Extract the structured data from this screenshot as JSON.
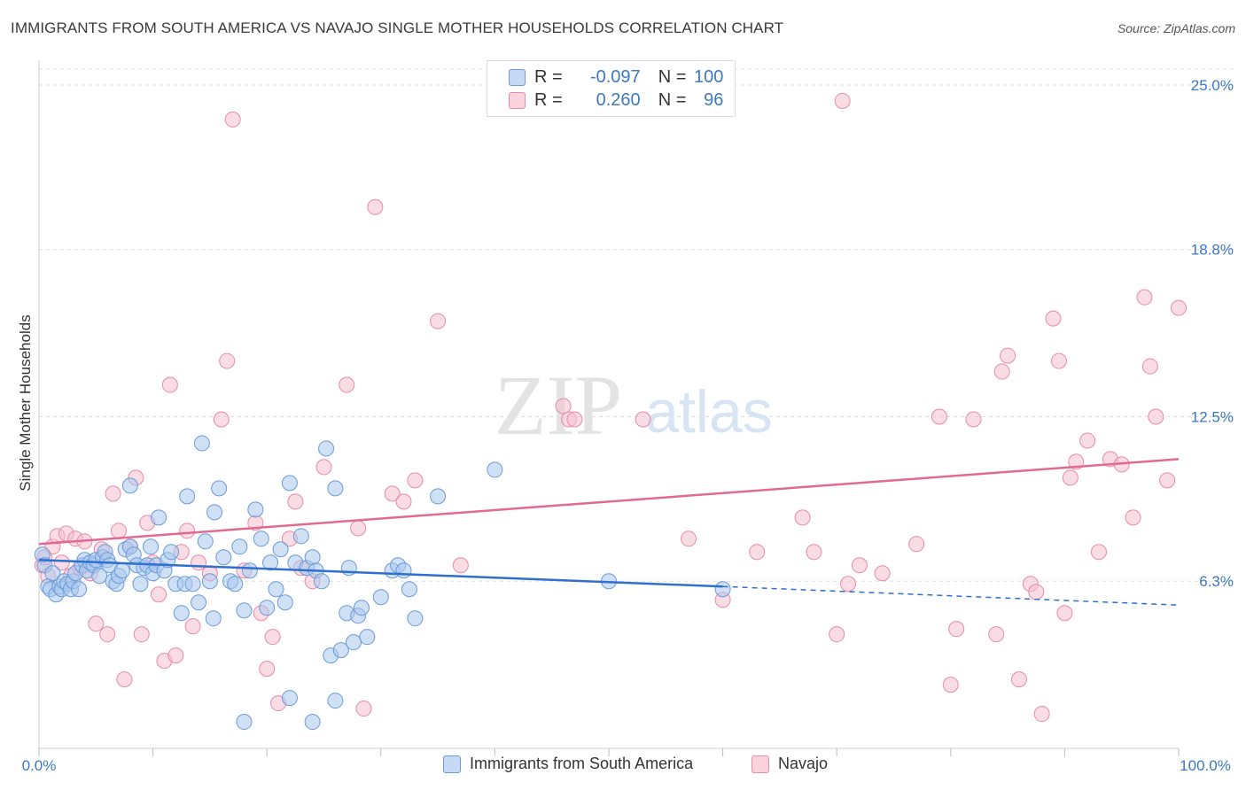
{
  "header": {
    "title": "IMMIGRANTS FROM SOUTH AMERICA VS NAVAJO SINGLE MOTHER HOUSEHOLDS CORRELATION CHART",
    "source": "Source: ZipAtlas.com"
  },
  "watermark": {
    "zip": "ZIP",
    "atlas": "atlas"
  },
  "legend": {
    "rows": [
      {
        "r_label": "R =",
        "r_value": "-0.097",
        "n_label": "N =",
        "n_value": "100",
        "color": "#a9c8ef"
      },
      {
        "r_label": "R =",
        "r_value": "0.260",
        "n_label": "N =",
        "n_value": "96",
        "color": "#f5b8cb"
      }
    ]
  },
  "colors": {
    "blue_fill": "#a9c8ef",
    "blue_stroke": "#6a9bd8",
    "blue_line": "#2e6fd0",
    "pink_fill": "#f5c0d0",
    "pink_stroke": "#e88aaa",
    "pink_line": "#e06a92",
    "axis_text": "#3b78c4",
    "grid": "#dddddd"
  },
  "chart_data": {
    "type": "scatter",
    "ylabel": "Single Mother Households",
    "xlabel": "",
    "x_tick_labels": [
      "0.0%",
      "100.0%"
    ],
    "y_ticks": [
      6.3,
      12.5,
      18.8,
      25.0
    ],
    "y_tick_labels": [
      "6.3%",
      "12.5%",
      "18.8%",
      "25.0%"
    ],
    "xlim": [
      0,
      100
    ],
    "ylim": [
      0,
      25.6
    ],
    "grid": true,
    "legend_position": "top-center",
    "series": [
      {
        "name": "Immigrants from South America",
        "r": -0.097,
        "n": 100,
        "trend": {
          "x0": 0,
          "y0": 7.1,
          "x1": 60,
          "y1": 6.1,
          "dash_to_x": 100,
          "dash_to_y": 5.4
        },
        "points": [
          [
            0.3,
            7.3
          ],
          [
            0.5,
            6.9
          ],
          [
            0.8,
            6.1
          ],
          [
            1,
            6.0
          ],
          [
            1.2,
            6.6
          ],
          [
            1.5,
            5.8
          ],
          [
            1.8,
            6.1
          ],
          [
            2,
            6.0
          ],
          [
            2.2,
            6.3
          ],
          [
            2.5,
            6.2
          ],
          [
            2.8,
            6.0
          ],
          [
            3,
            6.3
          ],
          [
            3.2,
            6.6
          ],
          [
            3.5,
            6.0
          ],
          [
            3.8,
            6.9
          ],
          [
            4,
            7.1
          ],
          [
            4.2,
            6.7
          ],
          [
            4.5,
            7.0
          ],
          [
            4.8,
            6.9
          ],
          [
            5,
            7.1
          ],
          [
            5.3,
            6.5
          ],
          [
            5.6,
            7.2
          ],
          [
            5.8,
            7.4
          ],
          [
            6,
            7.1
          ],
          [
            6.2,
            6.9
          ],
          [
            6.5,
            6.3
          ],
          [
            6.8,
            6.2
          ],
          [
            7,
            6.5
          ],
          [
            7.3,
            6.7
          ],
          [
            7.6,
            7.5
          ],
          [
            8,
            7.6
          ],
          [
            8.3,
            7.3
          ],
          [
            8.6,
            6.9
          ],
          [
            8.9,
            6.2
          ],
          [
            9.2,
            6.8
          ],
          [
            9.5,
            6.9
          ],
          [
            9.8,
            7.6
          ],
          [
            10,
            6.6
          ],
          [
            10.3,
            6.9
          ],
          [
            10.5,
            8.7
          ],
          [
            11,
            6.7
          ],
          [
            11.3,
            7.1
          ],
          [
            11.6,
            7.4
          ],
          [
            12,
            6.2
          ],
          [
            12.5,
            5.1
          ],
          [
            12.8,
            6.2
          ],
          [
            13,
            9.5
          ],
          [
            13.5,
            6.2
          ],
          [
            14,
            5.5
          ],
          [
            14.3,
            11.5
          ],
          [
            14.6,
            7.8
          ],
          [
            15,
            6.3
          ],
          [
            15.4,
            8.9
          ],
          [
            15.8,
            9.8
          ],
          [
            16.2,
            7.2
          ],
          [
            16.8,
            6.3
          ],
          [
            17.2,
            6.2
          ],
          [
            17.6,
            7.6
          ],
          [
            18,
            5.2
          ],
          [
            18.5,
            6.7
          ],
          [
            19,
            9.0
          ],
          [
            19.5,
            7.9
          ],
          [
            20,
            5.3
          ],
          [
            20.3,
            7.0
          ],
          [
            20.8,
            6.0
          ],
          [
            21.2,
            7.5
          ],
          [
            21.6,
            5.5
          ],
          [
            22,
            10.0
          ],
          [
            22.5,
            7.0
          ],
          [
            23,
            8.0
          ],
          [
            23.5,
            6.8
          ],
          [
            24,
            7.2
          ],
          [
            24.3,
            6.7
          ],
          [
            24.8,
            6.3
          ],
          [
            25.2,
            11.3
          ],
          [
            25.6,
            3.5
          ],
          [
            26,
            9.8
          ],
          [
            26.5,
            3.7
          ],
          [
            27,
            5.1
          ],
          [
            27.2,
            6.8
          ],
          [
            27.6,
            4.0
          ],
          [
            28,
            5.0
          ],
          [
            28.3,
            5.3
          ],
          [
            28.8,
            4.2
          ],
          [
            30,
            5.7
          ],
          [
            31,
            6.7
          ],
          [
            31.5,
            6.9
          ],
          [
            32,
            6.7
          ],
          [
            32.5,
            6.0
          ],
          [
            33,
            4.9
          ],
          [
            35,
            9.5
          ],
          [
            40,
            10.5
          ],
          [
            50,
            6.3
          ],
          [
            60,
            6.0
          ],
          [
            15.3,
            4.9
          ],
          [
            18,
            1.0
          ],
          [
            22,
            1.9
          ],
          [
            24,
            1.0
          ],
          [
            26,
            1.8
          ],
          [
            8,
            9.9
          ]
        ]
      },
      {
        "name": "Navajo",
        "r": 0.26,
        "n": 96,
        "trend": {
          "x0": 0,
          "y0": 7.7,
          "x1": 100,
          "y1": 10.9
        },
        "points": [
          [
            0.3,
            6.9
          ],
          [
            0.5,
            7.2
          ],
          [
            0.8,
            6.5
          ],
          [
            1.2,
            7.6
          ],
          [
            1.6,
            8.0
          ],
          [
            2,
            7.0
          ],
          [
            2.4,
            8.1
          ],
          [
            2.8,
            6.5
          ],
          [
            3.2,
            7.9
          ],
          [
            3.6,
            6.8
          ],
          [
            4,
            7.8
          ],
          [
            4.5,
            6.6
          ],
          [
            5,
            4.7
          ],
          [
            5.5,
            7.5
          ],
          [
            6,
            4.3
          ],
          [
            6.5,
            9.6
          ],
          [
            7,
            8.2
          ],
          [
            7.5,
            2.6
          ],
          [
            8,
            7.6
          ],
          [
            8.5,
            10.2
          ],
          [
            9,
            4.3
          ],
          [
            9.5,
            8.5
          ],
          [
            10,
            7.0
          ],
          [
            10.5,
            5.8
          ],
          [
            11,
            3.3
          ],
          [
            11.5,
            13.7
          ],
          [
            12,
            3.5
          ],
          [
            12.5,
            7.4
          ],
          [
            13,
            8.2
          ],
          [
            13.5,
            4.6
          ],
          [
            14,
            7.0
          ],
          [
            15,
            6.6
          ],
          [
            16,
            12.4
          ],
          [
            16.5,
            14.6
          ],
          [
            17,
            23.7
          ],
          [
            18,
            6.7
          ],
          [
            19,
            8.5
          ],
          [
            19.5,
            5.1
          ],
          [
            20,
            3.0
          ],
          [
            20.5,
            4.2
          ],
          [
            21,
            1.7
          ],
          [
            22,
            7.9
          ],
          [
            22.5,
            9.3
          ],
          [
            23,
            6.8
          ],
          [
            24,
            6.3
          ],
          [
            25,
            10.6
          ],
          [
            27,
            13.7
          ],
          [
            28,
            8.3
          ],
          [
            28.5,
            1.5
          ],
          [
            29.5,
            20.4
          ],
          [
            31,
            9.6
          ],
          [
            32,
            9.3
          ],
          [
            33,
            10.1
          ],
          [
            35,
            16.1
          ],
          [
            37,
            6.9
          ],
          [
            46,
            12.9
          ],
          [
            46.5,
            12.4
          ],
          [
            47,
            12.4
          ],
          [
            53,
            12.4
          ],
          [
            57,
            7.9
          ],
          [
            60,
            5.6
          ],
          [
            63,
            7.4
          ],
          [
            67,
            8.7
          ],
          [
            68,
            7.4
          ],
          [
            70,
            4.3
          ],
          [
            70.5,
            24.4
          ],
          [
            71,
            6.2
          ],
          [
            72,
            6.9
          ],
          [
            74,
            6.6
          ],
          [
            77,
            7.7
          ],
          [
            79,
            12.5
          ],
          [
            80,
            2.4
          ],
          [
            80.5,
            4.5
          ],
          [
            82,
            12.4
          ],
          [
            84,
            4.3
          ],
          [
            84.5,
            14.2
          ],
          [
            85,
            14.8
          ],
          [
            86,
            2.6
          ],
          [
            87,
            6.2
          ],
          [
            87.5,
            5.9
          ],
          [
            88,
            1.3
          ],
          [
            89,
            16.2
          ],
          [
            89.5,
            14.6
          ],
          [
            90,
            5.1
          ],
          [
            90.5,
            10.2
          ],
          [
            91,
            10.8
          ],
          [
            92,
            11.6
          ],
          [
            93,
            7.4
          ],
          [
            94,
            10.9
          ],
          [
            95,
            10.7
          ],
          [
            96,
            8.7
          ],
          [
            97,
            17.0
          ],
          [
            97.5,
            14.4
          ],
          [
            98,
            12.5
          ],
          [
            99,
            10.1
          ],
          [
            100,
            16.6
          ]
        ]
      }
    ]
  }
}
